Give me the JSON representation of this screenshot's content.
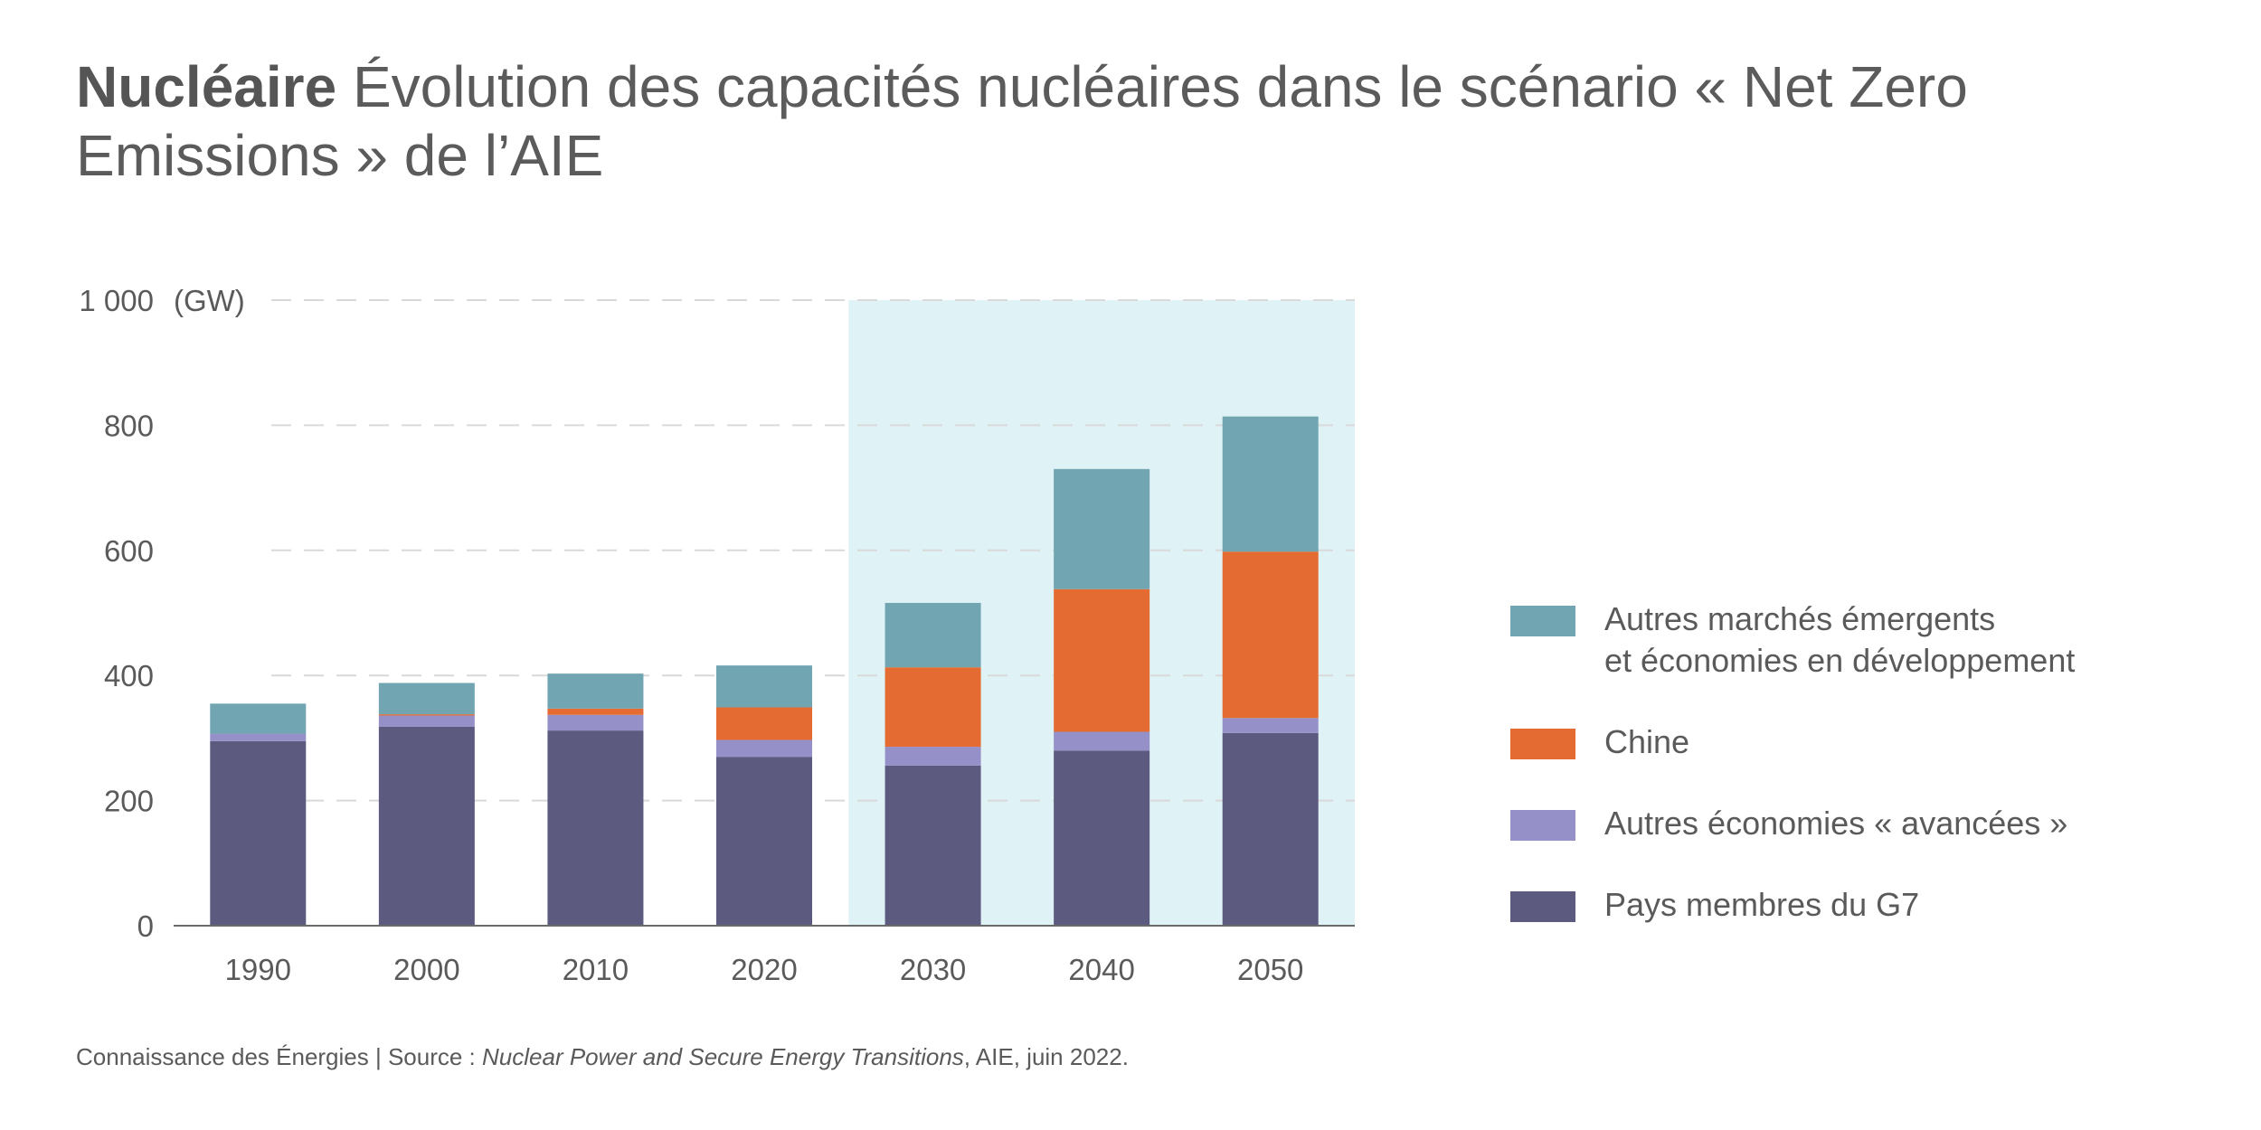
{
  "title": {
    "strong": "Nucléaire",
    "text": "Évolution des capacités nucléaires dans le scénario « Net Zero Emissions » de l’AIE"
  },
  "footer": {
    "prefix": "Connaissance des Énergies | Source : ",
    "source_italic": "Nuclear Power and Secure Energy Transitions",
    "suffix": ", AIE, juin 2022."
  },
  "chart_data": {
    "type": "bar",
    "stacked": true,
    "unit_label": "(GW)",
    "categories": [
      "1990",
      "2000",
      "2010",
      "2020",
      "2030",
      "2040",
      "2050"
    ],
    "ylim": [
      0,
      1000
    ],
    "yticks": [
      0,
      200,
      400,
      600,
      800,
      1000
    ],
    "ytick_labels": [
      "0",
      "200",
      "400",
      "600",
      "800",
      "1 000"
    ],
    "grid": true,
    "highlight_from_category": "2030",
    "legend_position": "right",
    "series": [
      {
        "name": "Pays membres du G7",
        "color": "#5d5a80",
        "values": [
          295,
          318,
          312,
          270,
          256,
          280,
          308
        ]
      },
      {
        "name": "Autres économies « avancées »",
        "color": "#9690c8",
        "values": [
          12,
          18,
          25,
          27,
          30,
          30,
          24
        ]
      },
      {
        "name": "Chine",
        "color": "#e46c32",
        "values": [
          0,
          2,
          10,
          52,
          127,
          228,
          266
        ]
      },
      {
        "name": "Autres marchés émergents\net économies en développement",
        "color": "#71a5b2",
        "values": [
          48,
          50,
          56,
          67,
          103,
          192,
          216
        ]
      }
    ],
    "highlight_color": "#dff2f5"
  }
}
